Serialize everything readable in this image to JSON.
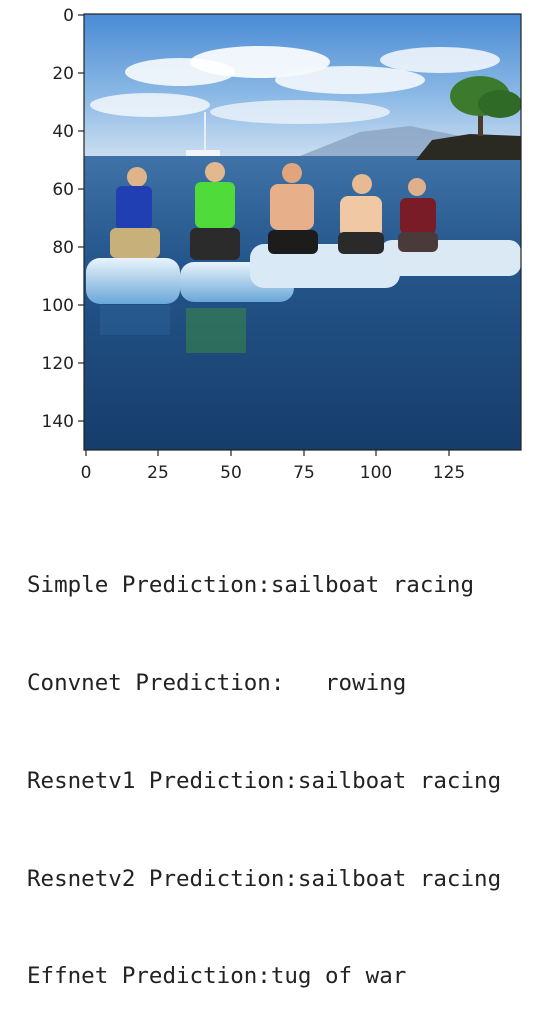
{
  "plot": {
    "x_ticks": [
      "0",
      "25",
      "50",
      "75",
      "100",
      "125"
    ],
    "y_ticks": [
      "0",
      "20",
      "40",
      "60",
      "80",
      "100",
      "120",
      "140"
    ],
    "image_subject": "five people sitting on paddleboards on the sea"
  },
  "predictions": [
    {
      "model": "Simple",
      "text": "Simple Prediction:sailboat racing"
    },
    {
      "model": "Convnet",
      "text": "Convnet Prediction:   rowing"
    },
    {
      "model": "Resnetv1",
      "text": "Resnetv1 Prediction:sailboat racing"
    },
    {
      "model": "Resnetv2",
      "text": "Resnetv2 Prediction:sailboat racing"
    },
    {
      "model": "Effnet",
      "text": "Effnet Prediction:tug of war"
    }
  ],
  "colors": {
    "sky_top": "#4f8fd6",
    "sky_bottom": "#b9d4ee",
    "sea": "#1f4f82",
    "text": "#222222"
  }
}
